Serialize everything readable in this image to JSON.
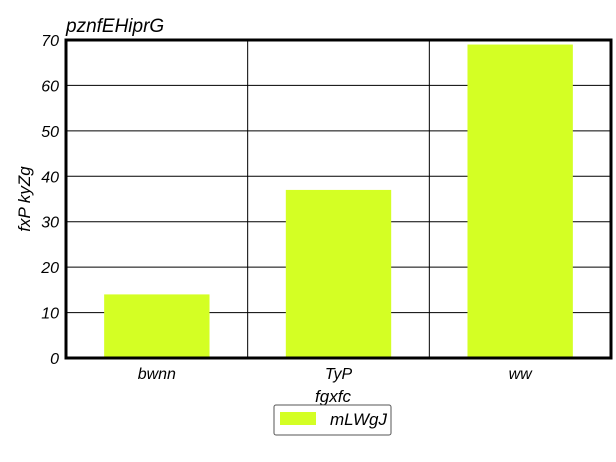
{
  "chart_data": {
    "type": "bar",
    "title": "pznfEHiprG",
    "xlabel": "fgxfc",
    "ylabel": "fxP kyZg",
    "categories": [
      "bwnn",
      "TyP",
      "ww"
    ],
    "series": [
      {
        "name": "mLWgJ",
        "values": [
          14,
          37,
          69
        ],
        "color": "#d4ff24"
      }
    ],
    "ylim": [
      0,
      70
    ],
    "yticks": [
      0,
      10,
      20,
      30,
      40,
      50,
      60,
      70
    ],
    "grid": true,
    "legend": "bottom-center"
  }
}
